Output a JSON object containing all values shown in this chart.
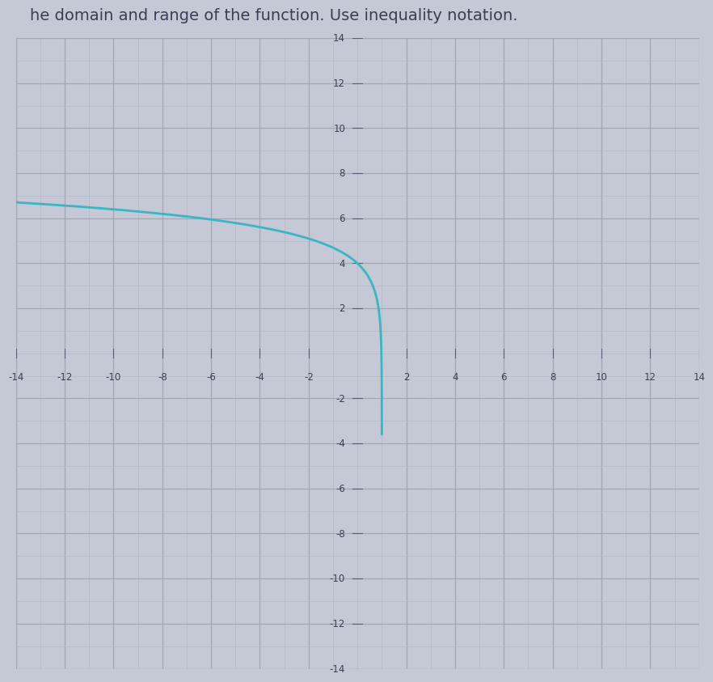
{
  "title": "he domain and range of the function. Use inequality notation.",
  "xlim": [
    -14,
    14
  ],
  "ylim": [
    -14,
    14
  ],
  "xticks": [
    -14,
    -12,
    -10,
    -8,
    -6,
    -4,
    -2,
    2,
    4,
    6,
    8,
    10,
    12,
    14
  ],
  "yticks": [
    -14,
    -12,
    -10,
    -8,
    -6,
    -4,
    -2,
    2,
    4,
    6,
    8,
    10,
    12,
    14
  ],
  "curve_color": "#3ab5c5",
  "curve_linewidth": 2.0,
  "background_color": "#c5c9d5",
  "grid_minor_color": "#b0b4c0",
  "grid_major_color": "#a0a4b0",
  "axis_color": "#5a5e7a",
  "text_color": "#3a3d55",
  "title_fontsize": 14,
  "tick_fontsize": 8.5
}
